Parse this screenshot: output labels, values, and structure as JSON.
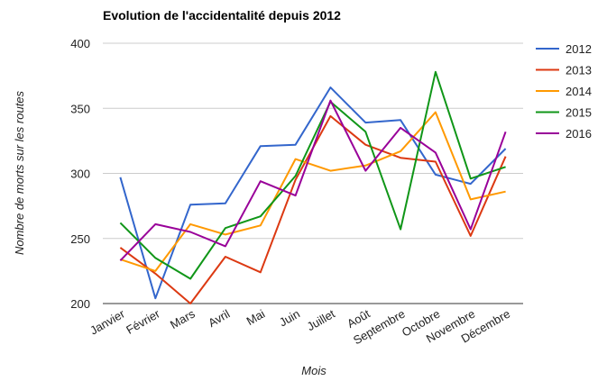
{
  "chart_data": {
    "type": "line",
    "title": "Evolution de l'accidentalité depuis 2012",
    "xlabel": "Mois",
    "ylabel": "Nombre de morts sur les routes",
    "categories": [
      "Janvier",
      "Février",
      "Mars",
      "Avril",
      "Mai",
      "Juin",
      "Juillet",
      "Août",
      "Septembre",
      "Octobre",
      "Novembre",
      "Décembre"
    ],
    "ylim": [
      200,
      400
    ],
    "yticks": [
      "200",
      "250",
      "300",
      "350",
      "400"
    ],
    "grid": true,
    "legend_position": "right",
    "series": [
      {
        "name": "2012",
        "color": "#3366cc",
        "values": [
          297,
          204,
          276,
          277,
          321,
          322,
          366,
          339,
          341,
          299,
          292,
          319
        ]
      },
      {
        "name": "2013",
        "color": "#dc3912",
        "values": [
          243,
          223,
          200,
          236,
          224,
          295,
          344,
          322,
          312,
          309,
          252,
          313
        ]
      },
      {
        "name": "2014",
        "color": "#ff9900",
        "values": [
          234,
          225,
          261,
          253,
          260,
          311,
          302,
          306,
          317,
          347,
          280,
          286
        ]
      },
      {
        "name": "2015",
        "color": "#109618",
        "values": [
          262,
          235,
          219,
          258,
          267,
          298,
          355,
          332,
          257,
          378,
          296,
          305
        ]
      },
      {
        "name": "2016",
        "color": "#990099",
        "values": [
          233,
          261,
          255,
          244,
          294,
          283,
          356,
          302,
          335,
          316,
          257,
          332
        ]
      }
    ]
  }
}
